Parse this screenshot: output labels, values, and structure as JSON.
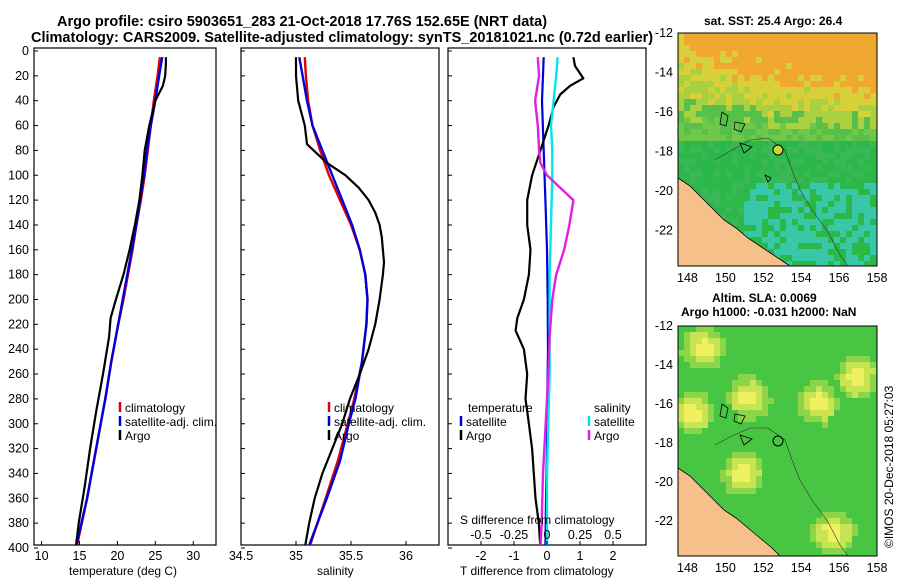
{
  "title_line1": "Argo profile: csiro 5903651_283 21-Oct-2018 17.76S 152.65E (NRT data)",
  "title_line2": "Climatology: CARS2009. Satellite-adjusted climatology: synTS_20181021.nc (0.72d earlier)",
  "sst_title": "sat. SST: 25.4 Argo: 26.4",
  "sla_title_1": "Altim. SLA: 0.0069",
  "sla_title_2": "Argo h1000: -0.031 h2000: NaN",
  "watermark": "©IMOS 20-Dec-2018 05:27:03",
  "colors": {
    "climatology": "#e00000",
    "satellite": "#0000dd",
    "argo": "#000000",
    "sat_sal": "#00e5ee",
    "clim_sal": "#e020e0",
    "land": "#f5c089",
    "sea_green": "#2bb848",
    "sla_green": "#49c544"
  },
  "legend": {
    "climatology": "climatology",
    "satellite_adj": "satellite-adj. clim.",
    "argo": "Argo",
    "temperature": "temperature",
    "salinity": "salinity",
    "satellite": "satellite"
  },
  "chart_data": [
    {
      "type": "line",
      "name": "temperature",
      "xlabel": "temperature (deg C)",
      "ylabel": "depth",
      "xlim": [
        9,
        33
      ],
      "ylim": [
        400,
        0
      ],
      "xticks": [
        "10",
        "15",
        "20",
        "25",
        "30"
      ],
      "xtick_values": [
        10,
        15,
        20,
        25,
        30
      ],
      "yticks": [
        "0",
        "20",
        "40",
        "60",
        "80",
        "100",
        "120",
        "140",
        "160",
        "180",
        "200",
        "220",
        "240",
        "260",
        "280",
        "300",
        "320",
        "340",
        "360",
        "380",
        "400"
      ],
      "series": [
        {
          "name": "climatology",
          "depth": [
            5,
            20,
            40,
            60,
            80,
            100,
            120,
            140,
            160,
            180,
            200,
            220,
            250,
            280,
            300,
            330,
            360,
            400
          ],
          "values": [
            25.6,
            25.3,
            24.8,
            24.4,
            24.0,
            23.6,
            23.1,
            22.5,
            22.0,
            21.4,
            20.8,
            20.1,
            19.2,
            18.4,
            17.8,
            16.9,
            16.0,
            14.6
          ]
        },
        {
          "name": "satellite-adj. clim.",
          "depth": [
            5,
            20,
            40,
            60,
            80,
            100,
            120,
            140,
            160,
            180,
            200,
            220,
            250,
            280,
            300,
            330,
            360,
            400
          ],
          "values": [
            25.9,
            25.5,
            25.0,
            24.4,
            23.9,
            23.5,
            23.0,
            22.5,
            21.9,
            21.3,
            20.7,
            20.1,
            19.2,
            18.4,
            17.8,
            16.9,
            16.0,
            14.5
          ]
        },
        {
          "name": "Argo",
          "depth": [
            5,
            10,
            20,
            28,
            40,
            60,
            80,
            100,
            120,
            140,
            160,
            180,
            200,
            215,
            230,
            260,
            290,
            320,
            350,
            380,
            400
          ],
          "values": [
            26.4,
            26.4,
            26.3,
            26.0,
            25.0,
            24.2,
            23.6,
            23.3,
            22.9,
            22.3,
            21.6,
            20.8,
            19.8,
            19.1,
            18.9,
            18.1,
            17.2,
            16.4,
            15.7,
            14.9,
            14.5
          ]
        }
      ],
      "legend_position": "lower-right"
    },
    {
      "type": "line",
      "name": "salinity",
      "xlabel": "salinity",
      "ylabel": "depth",
      "xlim": [
        34.5,
        36.3
      ],
      "ylim": [
        400,
        0
      ],
      "xticks": [
        "34.5",
        "35",
        "35.5",
        "36"
      ],
      "xtick_values": [
        34.5,
        35,
        35.5,
        36
      ],
      "series": [
        {
          "name": "climatology",
          "depth": [
            5,
            20,
            40,
            60,
            80,
            100,
            120,
            140,
            160,
            180,
            200,
            220,
            250,
            280,
            300,
            330,
            360,
            400
          ],
          "values": [
            35.08,
            35.09,
            35.11,
            35.15,
            35.22,
            35.3,
            35.4,
            35.5,
            35.58,
            35.63,
            35.65,
            35.64,
            35.6,
            35.53,
            35.47,
            35.38,
            35.27,
            35.12
          ]
        },
        {
          "name": "satellite-adj. clim.",
          "depth": [
            5,
            20,
            40,
            60,
            80,
            100,
            120,
            140,
            160,
            180,
            200,
            220,
            250,
            280,
            300,
            330,
            360,
            400
          ],
          "values": [
            35.03,
            35.06,
            35.1,
            35.15,
            35.24,
            35.33,
            35.42,
            35.51,
            35.58,
            35.63,
            35.65,
            35.64,
            35.6,
            35.54,
            35.48,
            35.4,
            35.28,
            35.11
          ]
        },
        {
          "name": "Argo",
          "depth": [
            5,
            20,
            40,
            60,
            75,
            90,
            100,
            110,
            120,
            130,
            140,
            150,
            160,
            170,
            180,
            200,
            220,
            240,
            260,
            280,
            300,
            320,
            340,
            360,
            380,
            400
          ],
          "values": [
            35.0,
            35.0,
            35.02,
            35.08,
            35.1,
            35.28,
            35.45,
            35.57,
            35.66,
            35.72,
            35.76,
            35.78,
            35.79,
            35.8,
            35.79,
            35.76,
            35.72,
            35.66,
            35.58,
            35.49,
            35.42,
            35.33,
            35.24,
            35.17,
            35.12,
            35.08
          ]
        }
      ],
      "legend_position": "lower-right"
    },
    {
      "type": "line",
      "name": "difference",
      "xlabel": "T difference from climatology",
      "xlabel_top": "S difference from climatology",
      "ylabel": "depth",
      "xlim": [
        -3,
        3
      ],
      "ylim": [
        400,
        0
      ],
      "xticks": [
        "-2",
        "-1",
        "0",
        "1",
        "2"
      ],
      "xtick_values": [
        -2,
        -1,
        0,
        1,
        2
      ],
      "s_xticks": [
        "-0.5",
        "-0.25",
        "0",
        "0.25",
        "0.5"
      ],
      "s_xtick_values": [
        -0.5,
        -0.25,
        0,
        0.25,
        0.5
      ],
      "series": [
        {
          "name": "T satellite",
          "depth": [
            5,
            40,
            80,
            120,
            160,
            200,
            240,
            280,
            320,
            360,
            400
          ],
          "values": [
            -0.1,
            -0.15,
            -0.1,
            -0.05,
            0.0,
            0.02,
            0.03,
            0.01,
            0.0,
            -0.03,
            -0.05
          ]
        },
        {
          "name": "T Argo",
          "depth": [
            5,
            12,
            18,
            22,
            28,
            35,
            45,
            60,
            80,
            100,
            120,
            140,
            160,
            180,
            200,
            215,
            225,
            240,
            260,
            280,
            300,
            320,
            340,
            360,
            380,
            400
          ],
          "values": [
            0.8,
            0.85,
            1.0,
            1.1,
            0.7,
            0.4,
            0.2,
            0.05,
            -0.2,
            -0.45,
            -0.6,
            -0.6,
            -0.5,
            -0.55,
            -0.7,
            -0.9,
            -0.95,
            -0.7,
            -0.6,
            -0.65,
            -0.55,
            -0.45,
            -0.4,
            -0.35,
            -0.25,
            -0.2
          ]
        },
        {
          "name": "S satellite",
          "depth": [
            5,
            20,
            40,
            60,
            80,
            100,
            140,
            180,
            220,
            260,
            300,
            340,
            400
          ],
          "values": [
            0.08,
            0.07,
            0.05,
            0.03,
            0.04,
            0.04,
            0.03,
            0.02,
            0.02,
            0.02,
            0.01,
            0.0,
            0.0
          ]
        },
        {
          "name": "S climatology",
          "depth": [
            5,
            20,
            40,
            60,
            80,
            90,
            100,
            110,
            120,
            140,
            160,
            180,
            200,
            230,
            260,
            300,
            340,
            380,
            400
          ],
          "values": [
            -0.07,
            -0.06,
            -0.09,
            -0.07,
            -0.06,
            -0.05,
            0.0,
            0.1,
            0.2,
            0.17,
            0.13,
            0.07,
            0.04,
            0.02,
            0.01,
            -0.01,
            -0.03,
            -0.04,
            -0.05
          ]
        }
      ],
      "legend_position": "lower-center"
    },
    {
      "type": "heatmap",
      "name": "sat_sst_map",
      "title": "sat. SST: 25.4 Argo: 26.4",
      "xlim": [
        147.5,
        158
      ],
      "ylim": [
        -23.8,
        -12
      ],
      "xticks": [
        "148",
        "150",
        "152",
        "154",
        "156",
        "158"
      ],
      "xtick_values": [
        148,
        150,
        152,
        154,
        156,
        158
      ],
      "yticks": [
        "-12",
        "-14",
        "-16",
        "-18",
        "-20",
        "-22"
      ],
      "ytick_values": [
        -12,
        -14,
        -16,
        -18,
        -20,
        -22
      ],
      "argo_position": {
        "lon": 152.65,
        "lat": -17.76
      }
    },
    {
      "type": "heatmap",
      "name": "altim_sla_map",
      "title": "Altim. SLA: 0.0069",
      "xlim": [
        147.5,
        158
      ],
      "ylim": [
        -23.8,
        -12
      ],
      "xticks": [
        "148",
        "150",
        "152",
        "154",
        "156",
        "158"
      ],
      "xtick_values": [
        148,
        150,
        152,
        154,
        156,
        158
      ],
      "yticks": [
        "-12",
        "-14",
        "-16",
        "-18",
        "-20",
        "-22"
      ],
      "ytick_values": [
        -12,
        -14,
        -16,
        -18,
        -20,
        -22
      ],
      "argo_position": {
        "lon": 152.65,
        "lat": -17.76
      }
    }
  ]
}
